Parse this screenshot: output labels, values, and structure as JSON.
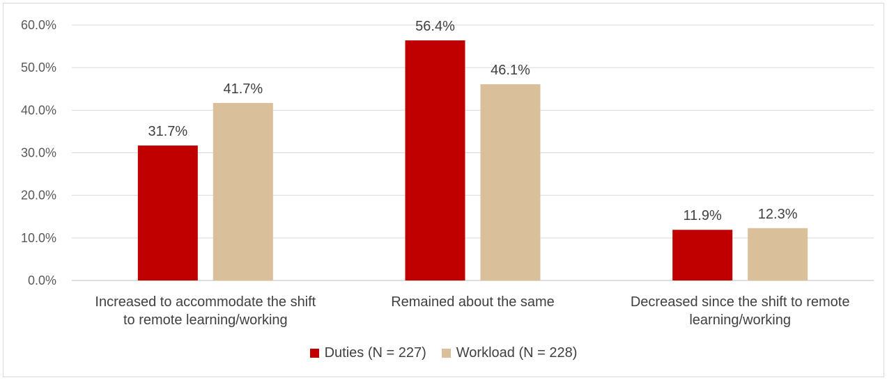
{
  "chart_data": {
    "type": "bar",
    "categories": [
      [
        "Increased to accommodate the shift",
        "to remote learning/working"
      ],
      [
        "Remained about the same"
      ],
      [
        "Decreased since the shift to remote",
        "learning/working"
      ]
    ],
    "series": [
      {
        "name": "Duties (N = 227)",
        "color": "#c00000",
        "values": [
          31.7,
          56.4,
          11.9
        ],
        "labels": [
          "31.7%",
          "56.4%",
          "11.9%"
        ]
      },
      {
        "name": "Workload (N = 228)",
        "color": "#d9c09a",
        "values": [
          41.7,
          46.1,
          12.3
        ],
        "labels": [
          "41.7%",
          "46.1%",
          "12.3%"
        ]
      }
    ],
    "y_ticks": [
      "0.0%",
      "10.0%",
      "20.0%",
      "30.0%",
      "40.0%",
      "50.0%",
      "60.0%"
    ],
    "ylim": [
      0,
      60
    ],
    "grid": true,
    "legend_position": "bottom-center"
  }
}
